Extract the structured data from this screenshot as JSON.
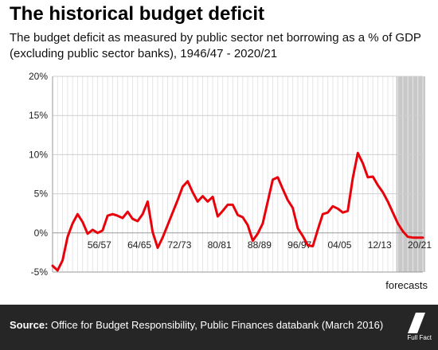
{
  "title": "The historical budget deficit",
  "subtitle": "The budget deficit as measured by public sector net borrowing as a % of GDP (excluding public sector banks), 1946/47 - 2020/21",
  "footer": {
    "source_label": "Source:",
    "source_text": "Office for Budget Responsibility, Public Finances databank (March 2016)",
    "logo_text": "Full Fact"
  },
  "chart_data": {
    "type": "line",
    "title": "The historical budget deficit",
    "subtitle": "The budget deficit as measured by public sector net borrowing as a % of GDP (excluding public sector banks), 1946/47 - 2020/21",
    "ylim": [
      -5,
      20
    ],
    "yticks": [
      "-5%",
      "0%",
      "5%",
      "10%",
      "15%",
      "20%"
    ],
    "ytick_values": [
      -5,
      0,
      5,
      10,
      15,
      20
    ],
    "xlim": [
      1946,
      2020
    ],
    "xtick_labels": [
      "56/57",
      "64/65",
      "72/73",
      "80/81",
      "88/89",
      "96/97",
      "04/05",
      "12/13",
      "20/21"
    ],
    "xtick_values": [
      1956,
      1964,
      1972,
      1980,
      1988,
      1996,
      2004,
      2012,
      2020
    ],
    "grid": true,
    "line_color": "#e8000b",
    "forecast": {
      "start": 2015,
      "end": 2020,
      "label": "forecasts",
      "color": "#c8c8c8"
    },
    "series": [
      {
        "x": [
          1946,
          1947,
          1948,
          1949,
          1950,
          1951,
          1952,
          1953,
          1954,
          1955,
          1956,
          1957,
          1958,
          1959,
          1960,
          1961,
          1962,
          1963,
          1964,
          1965,
          1966,
          1967,
          1968,
          1969,
          1970,
          1971,
          1972,
          1973,
          1974,
          1975,
          1976,
          1977,
          1978,
          1979,
          1980,
          1981,
          1982,
          1983,
          1984,
          1985,
          1986,
          1987,
          1988,
          1989,
          1990,
          1991,
          1992,
          1993,
          1994,
          1995,
          1996,
          1997,
          1998,
          1999,
          2000,
          2001,
          2002,
          2003,
          2004,
          2005,
          2006,
          2007,
          2008,
          2009,
          2010,
          2011,
          2012,
          2013,
          2014,
          2015,
          2016,
          2017,
          2018,
          2019,
          2020
        ],
        "y": [
          -4.2,
          -4.8,
          -3.5,
          -0.5,
          1.2,
          2.4,
          1.4,
          -0.1,
          0.4,
          0.0,
          0.3,
          2.2,
          2.4,
          2.2,
          1.9,
          2.7,
          1.8,
          1.5,
          2.4,
          4.0,
          0.1,
          -1.9,
          -0.6,
          1.0,
          2.6,
          4.2,
          5.9,
          6.6,
          5.2,
          4.0,
          4.7,
          4.0,
          4.6,
          2.1,
          2.8,
          3.6,
          3.6,
          2.3,
          2.0,
          1.0,
          -1.0,
          -0.1,
          1.2,
          4.0,
          6.8,
          7.1,
          5.6,
          4.2,
          3.2,
          0.6,
          -0.4,
          -1.6,
          -1.7,
          0.4,
          2.4,
          2.6,
          3.4,
          3.1,
          2.6,
          2.8,
          7.0,
          10.2,
          8.9,
          7.1,
          7.2,
          6.1,
          5.2,
          4.0,
          2.6,
          1.2,
          0.2,
          -0.5,
          -0.6,
          -0.6,
          -0.6
        ]
      }
    ]
  }
}
